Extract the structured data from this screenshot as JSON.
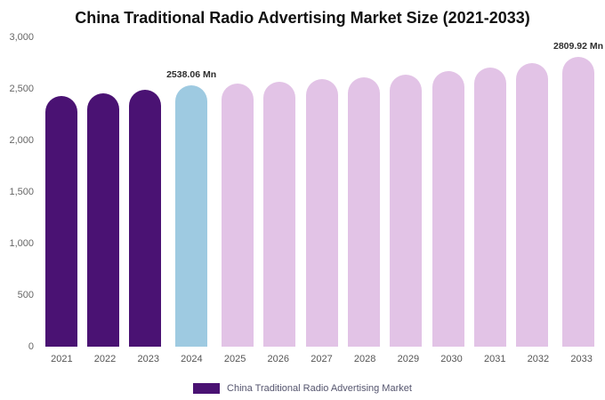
{
  "title": "China Traditional Radio Advertising Market Size (2021-2033)",
  "legend": {
    "label": "China Traditional Radio Advertising Market",
    "swatch_color": "#4a1273"
  },
  "colors": {
    "historical_bar": "#4a1273",
    "current_year_bar": "#9ecae1",
    "forecast_bar": "#e2c3e6"
  },
  "chart_data": {
    "type": "bar",
    "title": "China Traditional Radio Advertising Market Size (2021-2033)",
    "xlabel": "",
    "ylabel": "",
    "value_unit": "Mn",
    "categories": [
      "2021",
      "2022",
      "2023",
      "2024",
      "2025",
      "2026",
      "2027",
      "2028",
      "2029",
      "2030",
      "2031",
      "2032",
      "2033"
    ],
    "values": [
      2430,
      2460,
      2492,
      2538.06,
      2552,
      2572,
      2592,
      2614,
      2642,
      2672,
      2704,
      2746,
      2809.92
    ],
    "bar_colors": [
      "#4a1273",
      "#4a1273",
      "#4a1273",
      "#9ecae1",
      "#e2c3e6",
      "#e2c3e6",
      "#e2c3e6",
      "#e2c3e6",
      "#e2c3e6",
      "#e2c3e6",
      "#e2c3e6",
      "#e2c3e6",
      "#e2c3e6"
    ],
    "ylim": [
      0,
      3000
    ],
    "yticks": [
      0,
      500,
      1000,
      1500,
      2000,
      2500,
      3000
    ],
    "ytick_labels": [
      "0",
      "500",
      "1,000",
      "1,500",
      "2,000",
      "2,500",
      "3,000"
    ],
    "annotations": [
      {
        "category": "2024",
        "text": "2538.06 Mn"
      },
      {
        "category": "2033",
        "text": "2809.92 Mn"
      }
    ],
    "grid": false,
    "legend_position": "bottom",
    "legend_entries": [
      "China Traditional Radio Advertising Market"
    ]
  }
}
